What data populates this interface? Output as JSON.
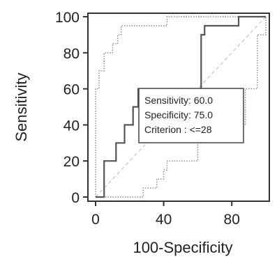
{
  "chart_data": {
    "type": "line",
    "xlabel": "100-Specificity",
    "ylabel": "Sensitivity",
    "xlim": [
      0,
      100
    ],
    "ylim": [
      0,
      100
    ],
    "x_ticks": [
      0,
      40,
      80
    ],
    "y_ticks": [
      0,
      20,
      40,
      60,
      80,
      100
    ],
    "grid": false,
    "series": [
      {
        "role": "roc",
        "style": "solid",
        "points": [
          [
            0,
            0
          ],
          [
            5,
            0
          ],
          [
            5,
            20
          ],
          [
            12,
            20
          ],
          [
            12,
            30
          ],
          [
            17,
            30
          ],
          [
            17,
            40
          ],
          [
            22,
            40
          ],
          [
            22,
            50
          ],
          [
            25,
            50
          ],
          [
            25,
            60
          ],
          [
            62,
            60
          ],
          [
            62,
            90
          ],
          [
            64,
            90
          ],
          [
            64,
            95
          ],
          [
            84,
            95
          ],
          [
            84,
            100
          ],
          [
            100,
            100
          ]
        ]
      },
      {
        "role": "upper-confidence-bound",
        "style": "dotted",
        "points": [
          [
            0,
            0
          ],
          [
            0,
            60
          ],
          [
            2,
            60
          ],
          [
            2,
            70
          ],
          [
            5,
            70
          ],
          [
            5,
            80
          ],
          [
            10,
            80
          ],
          [
            10,
            85
          ],
          [
            13,
            85
          ],
          [
            13,
            90
          ],
          [
            15,
            90
          ],
          [
            15,
            95
          ],
          [
            42,
            95
          ],
          [
            42,
            100
          ],
          [
            100,
            100
          ]
        ]
      },
      {
        "role": "lower-confidence-bound",
        "style": "dotted",
        "points": [
          [
            0,
            0
          ],
          [
            28,
            0
          ],
          [
            28,
            5
          ],
          [
            36,
            5
          ],
          [
            36,
            10
          ],
          [
            40,
            10
          ],
          [
            40,
            15
          ],
          [
            42,
            15
          ],
          [
            42,
            20
          ],
          [
            60,
            20
          ],
          [
            60,
            30
          ],
          [
            62,
            30
          ],
          [
            62,
            40
          ],
          [
            88,
            40
          ],
          [
            88,
            60
          ],
          [
            95,
            60
          ],
          [
            95,
            90
          ],
          [
            100,
            90
          ],
          [
            100,
            100
          ]
        ]
      },
      {
        "role": "reference-diagonal",
        "style": "dashed",
        "points": [
          [
            0,
            0
          ],
          [
            100,
            100
          ]
        ]
      }
    ],
    "annotation": {
      "lines": [
        "Sensitivity: 60.0",
        "Specificity: 75.0",
        "Criterion : <=28"
      ],
      "anchor": [
        37,
        61
      ]
    }
  }
}
